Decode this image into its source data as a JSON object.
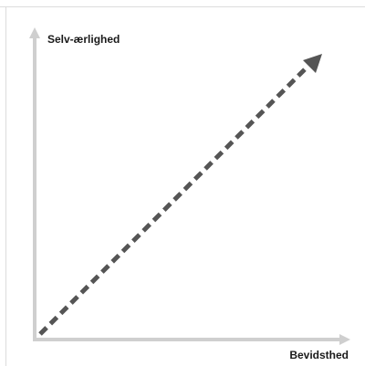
{
  "diagram": {
    "y_axis_label": "Selv-ærlighed",
    "x_axis_label": "Bevidsthed"
  },
  "colors": {
    "background": "#ffffff",
    "frame": "#dcdcdc",
    "axis": "#cfcfcf",
    "diagonal": "#555555",
    "text": "#1a1a1a"
  },
  "icons": {
    "y_axis_arrow": "arrow-up-icon",
    "x_axis_arrow": "arrow-right-icon",
    "diagonal_arrow": "arrow-up-right-icon"
  }
}
